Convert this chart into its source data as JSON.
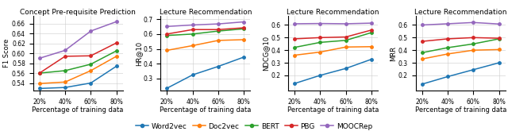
{
  "x": [
    20,
    40,
    60,
    80
  ],
  "x_labels": [
    "20%",
    "40%",
    "60%",
    "80%"
  ],
  "subplots": [
    {
      "title": "Concept Pre-requisite Prediction",
      "ylabel": "F1 Score",
      "ylim": [
        0.525,
        0.675
      ],
      "yticks": [
        0.54,
        0.56,
        0.58,
        0.6,
        0.62,
        0.64,
        0.66
      ],
      "series": {
        "Word2vec": [
          0.529,
          0.531,
          0.54,
          0.574
        ],
        "Doc2vec": [
          0.539,
          0.542,
          0.565,
          0.594
        ],
        "BERT": [
          0.56,
          0.565,
          0.578,
          0.605
        ],
        "PBG": [
          0.56,
          0.594,
          0.595,
          0.621
        ],
        "MOOCRep": [
          0.59,
          0.606,
          0.645,
          0.664
        ]
      }
    },
    {
      "title": "Lecture Recommendation",
      "ylabel": "HR@10",
      "ylim": [
        0.22,
        0.72
      ],
      "yticks": [
        0.3,
        0.4,
        0.5,
        0.6,
        0.7
      ],
      "series": {
        "Word2vec": [
          0.235,
          0.325,
          0.382,
          0.445
        ],
        "Doc2vec": [
          0.49,
          0.522,
          0.557,
          0.562
        ],
        "BERT": [
          0.59,
          0.6,
          0.62,
          0.635
        ],
        "PBG": [
          0.6,
          0.63,
          0.63,
          0.642
        ],
        "MOOCRep": [
          0.651,
          0.661,
          0.668,
          0.682
        ]
      }
    },
    {
      "title": "Lecture Recommendation",
      "ylabel": "NDCG@10",
      "ylim": [
        0.08,
        0.67
      ],
      "yticks": [
        0.2,
        0.3,
        0.4,
        0.5,
        0.6
      ],
      "series": {
        "Word2vec": [
          0.135,
          0.2,
          0.255,
          0.328
        ],
        "Doc2vec": [
          0.36,
          0.385,
          0.425,
          0.428
        ],
        "BERT": [
          0.422,
          0.462,
          0.478,
          0.54
        ],
        "PBG": [
          0.49,
          0.5,
          0.505,
          0.56
        ],
        "MOOCRep": [
          0.61,
          0.612,
          0.61,
          0.615
        ]
      }
    },
    {
      "title": "Lecture Recommendation",
      "ylabel": "MRR",
      "ylim": [
        0.08,
        0.67
      ],
      "yticks": [
        0.2,
        0.3,
        0.4,
        0.5,
        0.6
      ],
      "series": {
        "Word2vec": [
          0.13,
          0.19,
          0.245,
          0.3
        ],
        "Doc2vec": [
          0.33,
          0.37,
          0.4,
          0.405
        ],
        "BERT": [
          0.38,
          0.42,
          0.45,
          0.49
        ],
        "PBG": [
          0.47,
          0.49,
          0.5,
          0.495
        ],
        "MOOCRep": [
          0.6,
          0.61,
          0.62,
          0.608
        ]
      }
    }
  ],
  "colors": {
    "Word2vec": "#1f77b4",
    "Doc2vec": "#ff7f0e",
    "BERT": "#2ca02c",
    "PBG": "#d62728",
    "MOOCRep": "#9467bd"
  },
  "marker": "o",
  "markersize": 2.5,
  "linewidth": 1.1,
  "legend_labels": [
    "Word2vec",
    "Doc2vec",
    "BERT",
    "PBG",
    "MOOCRep"
  ],
  "xlabel": "Percentage of training data",
  "title_fontsize": 6.5,
  "label_fontsize": 6.0,
  "tick_fontsize": 5.5,
  "legend_fontsize": 6.5
}
